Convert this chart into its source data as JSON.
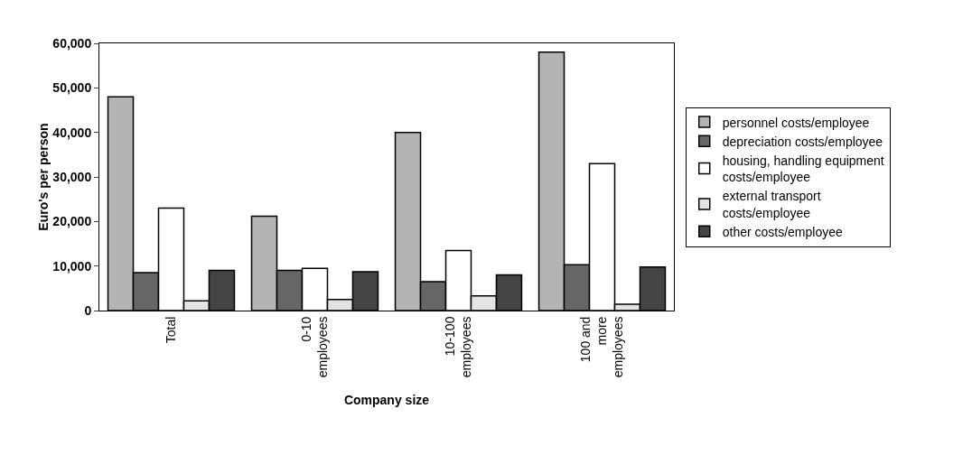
{
  "chart_data": {
    "type": "bar",
    "xlabel": "Company size",
    "ylabel": "Euro's per person",
    "categories": [
      "Total",
      "0-10\nemployees",
      "10-100\nemployees",
      "100 and\nmore\nemployees"
    ],
    "series": [
      {
        "name": "personnel costs/employee",
        "color": "#b4b4b4",
        "values": [
          48000,
          21200,
          40000,
          58000
        ]
      },
      {
        "name": "depreciation costs/employee",
        "color": "#666666",
        "values": [
          8500,
          9000,
          6500,
          10300
        ]
      },
      {
        "name": "housing, handling equipment\ncosts/employee",
        "color": "#ffffff",
        "values": [
          23000,
          9500,
          13500,
          33000
        ]
      },
      {
        "name": "external transport\ncosts/employee",
        "color": "#e4e4e4",
        "values": [
          2200,
          2500,
          3300,
          1400
        ]
      },
      {
        "name": "other costs/employee",
        "color": "#444444",
        "values": [
          9000,
          8700,
          8000,
          9800
        ]
      }
    ],
    "ylim": [
      0,
      60000
    ],
    "yticks": [
      {
        "value": 0,
        "label": "0"
      },
      {
        "value": 10000,
        "label": "10,000"
      },
      {
        "value": 20000,
        "label": "20,000"
      },
      {
        "value": 30000,
        "label": "30,000"
      },
      {
        "value": 40000,
        "label": "40,000"
      },
      {
        "value": 50000,
        "label": "50,000"
      },
      {
        "value": 60000,
        "label": "60,000"
      }
    ],
    "grid": false,
    "legend": "right"
  }
}
